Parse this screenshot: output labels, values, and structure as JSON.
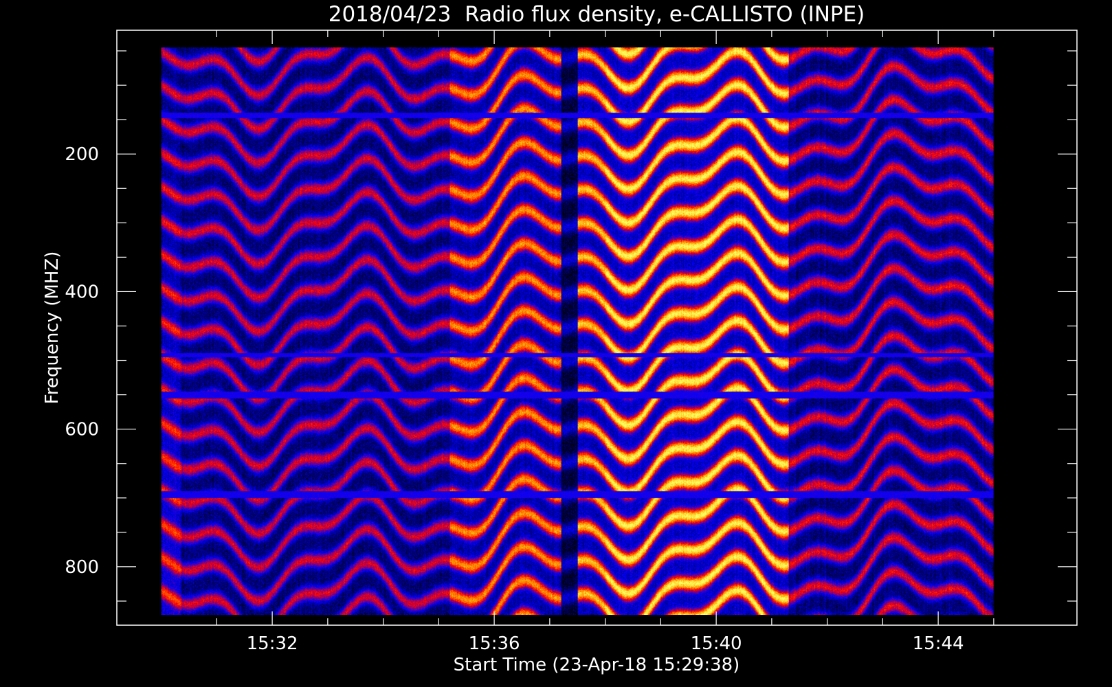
{
  "chart_data": {
    "type": "heatmap",
    "title": "2018/04/23  Radio flux density, e-CALLISTO (INPE)",
    "xlabel": "Start Time (23-Apr-18 15:29:38)",
    "ylabel": "Frequency (MHZ)",
    "x_tick_labels": [
      "15:32",
      "15:36",
      "15:40",
      "15:44"
    ],
    "y_tick_labels": [
      "200",
      "400",
      "600",
      "800"
    ],
    "x_ticks_min": [
      31.0,
      32.0,
      33.0,
      34.0,
      35.0,
      36.0,
      37.0,
      38.0,
      39.0,
      40.0,
      41.0,
      42.0,
      43.0,
      44.0,
      45.0
    ],
    "x_ticks_labeled_min": [
      32.0,
      36.0,
      40.0,
      44.0
    ],
    "y_ticks_mhz": [
      50,
      100,
      150,
      200,
      250,
      300,
      350,
      400,
      450,
      500,
      550,
      600,
      650,
      700,
      750,
      800,
      850
    ],
    "y_ticks_labeled_mhz": [
      200,
      400,
      600,
      800
    ],
    "xlim_minutes_after_15h": [
      29.2,
      46.5
    ],
    "ylim_mhz": [
      885,
      20
    ],
    "data_extent": {
      "t_start_min": 30.0,
      "t_end_min": 45.0,
      "f_low_mhz": 45,
      "f_high_mhz": 870
    },
    "colormap": [
      "#000000",
      "#0000ff",
      "#ff0000",
      "#ffa500",
      "#ffff60"
    ],
    "frame_color": "#ffffff",
    "bright_interval_min": [
      38.0,
      41.3
    ],
    "grid": false,
    "legend": "none"
  }
}
